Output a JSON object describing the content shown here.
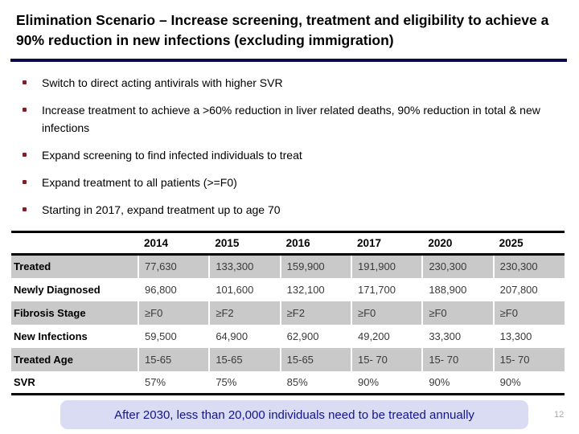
{
  "slide": {
    "title": "Elimination Scenario – Increase screening, treatment and eligibility to achieve a 90% reduction in new infections (excluding immigration)",
    "bullets": [
      "Switch to direct acting antivirals with higher SVR",
      "Increase treatment to achieve a >60% reduction in liver related deaths, 90% reduction in total & new infections",
      "Expand screening to find infected individuals to treat",
      "Expand treatment to all patients (>=F0)",
      "Starting in 2017, expand treatment up to age 70"
    ],
    "callout": "After 2030, less than 20,000 individuals need to be treated annually",
    "page_number": "12"
  },
  "table": {
    "columns": [
      "2014",
      "2015",
      "2016",
      "2017",
      "2020",
      "2025"
    ],
    "rows": [
      {
        "label": "Treated",
        "values": [
          "77,630",
          "133,300",
          "159,900",
          "191,900",
          "230,300",
          "230,300"
        ]
      },
      {
        "label": "Newly Diagnosed",
        "values": [
          "96,800",
          "101,600",
          "132,100",
          "171,700",
          "188,900",
          "207,800"
        ]
      },
      {
        "label": "Fibrosis Stage",
        "values": [
          "≥F0",
          "≥F2",
          "≥F2",
          "≥F0",
          "≥F0",
          "≥F0"
        ]
      },
      {
        "label": "New Infections",
        "values": [
          "59,500",
          "64,900",
          "62,900",
          "49,200",
          "33,300",
          "13,300"
        ]
      },
      {
        "label": "Treated Age",
        "values": [
          "15-65",
          "15-65",
          "15-65",
          "15- 70",
          "15- 70",
          "15- 70"
        ]
      },
      {
        "label": "SVR",
        "values": [
          "57%",
          "75%",
          "85%",
          "90%",
          "90%",
          "90%"
        ]
      }
    ]
  },
  "colors": {
    "title_rule": "#0a0a4d",
    "bullet_marker": "#7c2128",
    "table_band": "#c9c9c9",
    "callout_background": "#d9dcf3",
    "callout_text": "#14148c"
  }
}
